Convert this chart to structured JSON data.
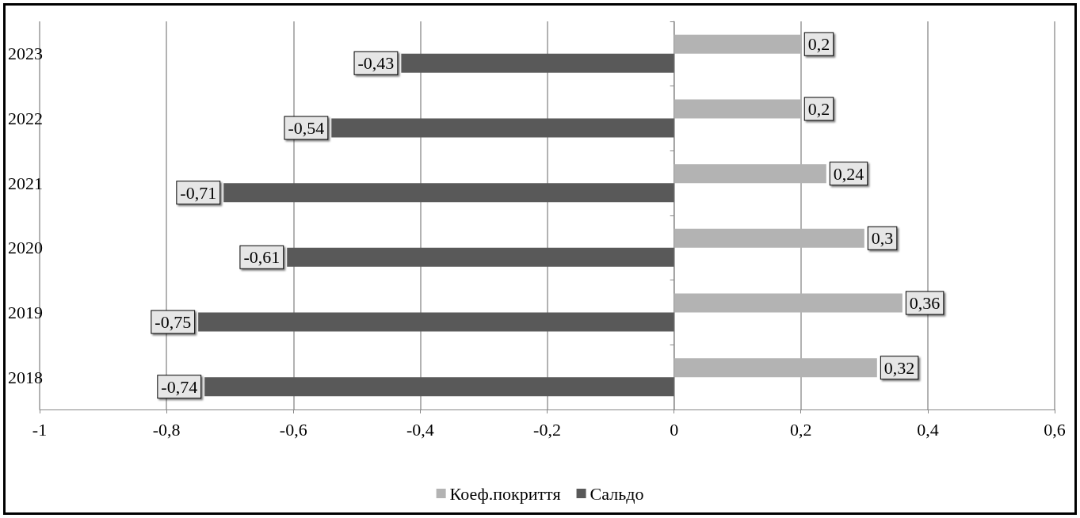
{
  "chart_data": {
    "type": "bar",
    "orientation": "horizontal",
    "categories": [
      "2023",
      "2022",
      "2021",
      "2020",
      "2019",
      "2018"
    ],
    "series": [
      {
        "name": "Коеф.покриття",
        "color": "#b3b3b3",
        "values": [
          0.2,
          0.2,
          0.24,
          0.3,
          0.36,
          0.32
        ],
        "value_labels": [
          "0,2",
          "0,2",
          "0,24",
          "0,3",
          "0,36",
          "0,32"
        ]
      },
      {
        "name": "Сальдо",
        "color": "#595959",
        "values": [
          -0.43,
          -0.54,
          -0.71,
          -0.61,
          -0.75,
          -0.74
        ],
        "value_labels": [
          "-0,43",
          "-0,54",
          "-0,71",
          "-0,61",
          "-0,75",
          "-0,74"
        ]
      }
    ],
    "xlim": [
      -1,
      0.6
    ],
    "xticks": [
      {
        "value": -1,
        "label": "-1"
      },
      {
        "value": -0.8,
        "label": "-0,8"
      },
      {
        "value": -0.6,
        "label": "-0,6"
      },
      {
        "value": -0.4,
        "label": "-0,4"
      },
      {
        "value": -0.2,
        "label": "-0,2"
      },
      {
        "value": 0,
        "label": "0"
      },
      {
        "value": 0.2,
        "label": "0,2"
      },
      {
        "value": 0.4,
        "label": "0,4"
      },
      {
        "value": 0.6,
        "label": "0,6"
      }
    ],
    "grid": "x",
    "legend": "bottom"
  }
}
